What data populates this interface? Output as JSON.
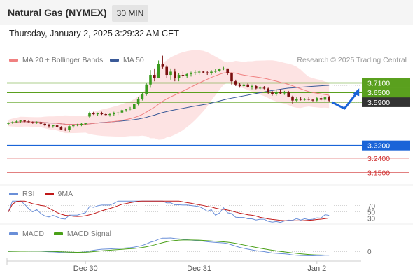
{
  "header": {
    "instrument": "Natural Gas (NYMEX)",
    "timeframe": "30 MIN",
    "datetime": "Thursday, January 2, 2025 3:29:32 AM CET"
  },
  "legend": {
    "ma20": "MA 20 + Bollinger Bands",
    "ma50": "MA 50",
    "copyright": "Research © 2025 Trading Central",
    "rsi": "RSI",
    "rsi_ma": "9MA",
    "macd": "MACD",
    "macd_signal": "MACD Signal"
  },
  "colors": {
    "ma20": "#f08080",
    "ma50": "#3a5a98",
    "band": "#fcd0d0",
    "green": "#5aa01e",
    "blue": "#1a64d8",
    "red": "#d03030",
    "up": "#3a9a1e",
    "down": "#7a1010",
    "rsi": "#6a8fd8",
    "rsi_ma": "#c01818",
    "macd": "#6a8fd8",
    "macd_signal": "#4aa018"
  },
  "chart_data": [
    {
      "type": "candlestick",
      "title": "Natural Gas (NYMEX) 30 MIN",
      "x_labels": [
        "Dec 30",
        "Dec 31",
        "Jan 2"
      ],
      "ohlc": [
        [
          3.455,
          3.465,
          3.45,
          3.46
        ],
        [
          3.46,
          3.47,
          3.455,
          3.465
        ],
        [
          3.465,
          3.475,
          3.46,
          3.47
        ],
        [
          3.47,
          3.48,
          3.46,
          3.475
        ],
        [
          3.475,
          3.48,
          3.465,
          3.47
        ],
        [
          3.47,
          3.48,
          3.46,
          3.465
        ],
        [
          3.465,
          3.47,
          3.455,
          3.46
        ],
        [
          3.46,
          3.47,
          3.455,
          3.465
        ],
        [
          3.465,
          3.47,
          3.45,
          3.455
        ],
        [
          3.455,
          3.46,
          3.44,
          3.445
        ],
        [
          3.445,
          3.455,
          3.43,
          3.44
        ],
        [
          3.44,
          3.45,
          3.43,
          3.445
        ],
        [
          3.445,
          3.45,
          3.43,
          3.435
        ],
        [
          3.435,
          3.44,
          3.415,
          3.42
        ],
        [
          3.42,
          3.43,
          3.41,
          3.415
        ],
        [
          3.415,
          3.445,
          3.405,
          3.44
        ],
        [
          3.44,
          3.45,
          3.43,
          3.445
        ],
        [
          3.445,
          3.455,
          3.44,
          3.45
        ],
        [
          3.45,
          3.46,
          3.44,
          3.455
        ],
        [
          3.455,
          3.46,
          3.45,
          3.458
        ],
        [
          3.5,
          3.53,
          3.49,
          3.52
        ],
        [
          3.52,
          3.53,
          3.51,
          3.515
        ],
        [
          3.515,
          3.525,
          3.505,
          3.52
        ],
        [
          3.52,
          3.53,
          3.51,
          3.515
        ],
        [
          3.515,
          3.52,
          3.505,
          3.51
        ],
        [
          3.51,
          3.52,
          3.5,
          3.515
        ],
        [
          3.515,
          3.53,
          3.505,
          3.52
        ],
        [
          3.52,
          3.53,
          3.51,
          3.525
        ],
        [
          3.525,
          3.545,
          3.52,
          3.54
        ],
        [
          3.54,
          3.55,
          3.53,
          3.545
        ],
        [
          3.545,
          3.56,
          3.54,
          3.55
        ],
        [
          3.55,
          3.58,
          3.55,
          3.58
        ],
        [
          3.58,
          3.62,
          3.57,
          3.61
        ],
        [
          3.61,
          3.65,
          3.6,
          3.64
        ],
        [
          3.64,
          3.71,
          3.63,
          3.7
        ],
        [
          3.7,
          3.79,
          3.68,
          3.76
        ],
        [
          3.76,
          3.8,
          3.72,
          3.74
        ],
        [
          3.74,
          3.85,
          3.74,
          3.83
        ],
        [
          3.83,
          3.88,
          3.8,
          3.81
        ],
        [
          3.81,
          3.82,
          3.74,
          3.76
        ],
        [
          3.76,
          3.8,
          3.73,
          3.78
        ],
        [
          3.78,
          3.8,
          3.72,
          3.74
        ],
        [
          3.74,
          3.77,
          3.72,
          3.76
        ],
        [
          3.76,
          3.78,
          3.74,
          3.755
        ],
        [
          3.755,
          3.77,
          3.74,
          3.765
        ],
        [
          3.765,
          3.78,
          3.75,
          3.77
        ],
        [
          3.77,
          3.79,
          3.76,
          3.775
        ],
        [
          3.775,
          3.79,
          3.76,
          3.78
        ],
        [
          3.78,
          3.785,
          3.77,
          3.775
        ],
        [
          3.775,
          3.785,
          3.76,
          3.77
        ],
        [
          3.77,
          3.79,
          3.76,
          3.78
        ],
        [
          3.78,
          3.795,
          3.77,
          3.785
        ],
        [
          3.785,
          3.8,
          3.78,
          3.795
        ],
        [
          3.795,
          3.81,
          3.79,
          3.8
        ],
        [
          3.8,
          3.8,
          3.76,
          3.77
        ],
        [
          3.77,
          3.775,
          3.7,
          3.72
        ],
        [
          3.72,
          3.73,
          3.69,
          3.7
        ],
        [
          3.7,
          3.71,
          3.68,
          3.69
        ],
        [
          3.69,
          3.705,
          3.68,
          3.7
        ],
        [
          3.7,
          3.71,
          3.68,
          3.685
        ],
        [
          3.685,
          3.7,
          3.67,
          3.69
        ],
        [
          3.69,
          3.695,
          3.67,
          3.675
        ],
        [
          3.675,
          3.69,
          3.665,
          3.68
        ],
        [
          3.68,
          3.69,
          3.67,
          3.675
        ],
        [
          3.675,
          3.68,
          3.64,
          3.65
        ],
        [
          3.65,
          3.66,
          3.63,
          3.64
        ],
        [
          3.64,
          3.665,
          3.63,
          3.655
        ],
        [
          3.655,
          3.67,
          3.64,
          3.645
        ],
        [
          3.645,
          3.66,
          3.635,
          3.65
        ],
        [
          3.65,
          3.66,
          3.62,
          3.625
        ],
        [
          3.625,
          3.63,
          3.58,
          3.6
        ],
        [
          3.6,
          3.62,
          3.59,
          3.61
        ],
        [
          3.61,
          3.62,
          3.6,
          3.605
        ],
        [
          3.605,
          3.615,
          3.6,
          3.61
        ],
        [
          3.61,
          3.62,
          3.6,
          3.605
        ],
        [
          3.605,
          3.61,
          3.595,
          3.6
        ],
        [
          3.6,
          3.62,
          3.595,
          3.615
        ],
        [
          3.615,
          3.63,
          3.6,
          3.605
        ],
        [
          3.605,
          3.625,
          3.595,
          3.62
        ],
        [
          3.62,
          3.63,
          3.59,
          3.6
        ]
      ],
      "support_resistance": [
        3.71,
        3.65,
        3.59,
        3.32,
        3.24,
        3.15
      ],
      "level_labels": [
        "3.7100",
        "3.6500",
        "3.5900",
        "3.3200",
        "3.2400",
        "3.1500"
      ],
      "last_price": 3.59,
      "projection": [
        3.59,
        3.55,
        3.65
      ],
      "ylim": [
        3.1,
        3.9
      ]
    },
    {
      "type": "line",
      "name": "RSI",
      "ticks": [
        "70",
        "50",
        "30"
      ],
      "ylim": [
        10,
        90
      ]
    },
    {
      "type": "line",
      "name": "MACD",
      "ticks": [
        "0"
      ]
    }
  ]
}
